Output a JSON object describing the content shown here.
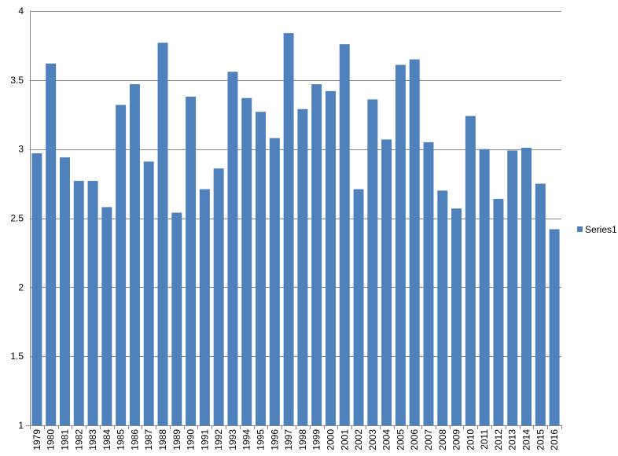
{
  "chart_data": {
    "type": "bar",
    "title": "",
    "xlabel": "",
    "ylabel": "",
    "ylim": [
      1,
      4
    ],
    "yticks": [
      1,
      1.5,
      2,
      2.5,
      3,
      3.5,
      4
    ],
    "ytick_labels": [
      "1",
      "1.5",
      "2",
      "2.5",
      "3",
      "3.5",
      "4"
    ],
    "grid": true,
    "legend_position": "right",
    "bar_color": "#4F81BD",
    "categories": [
      "1979",
      "1980",
      "1981",
      "1982",
      "1983",
      "1984",
      "1985",
      "1986",
      "1987",
      "1988",
      "1989",
      "1990",
      "1991",
      "1992",
      "1993",
      "1994",
      "1995",
      "1996",
      "1997",
      "1998",
      "1999",
      "2000",
      "2001",
      "2002",
      "2003",
      "2004",
      "2005",
      "2006",
      "2007",
      "2008",
      "2009",
      "2010",
      "2011",
      "2012",
      "2013",
      "2014",
      "2015",
      "2016"
    ],
    "series": [
      {
        "name": "Series1",
        "values": [
          2.97,
          3.62,
          2.94,
          2.77,
          2.77,
          2.58,
          3.32,
          3.47,
          2.91,
          3.77,
          2.54,
          3.38,
          2.71,
          2.86,
          3.56,
          3.37,
          3.27,
          3.08,
          3.84,
          3.29,
          3.47,
          3.42,
          3.76,
          2.71,
          3.36,
          3.07,
          3.61,
          3.65,
          3.05,
          2.7,
          2.57,
          3.24,
          3.0,
          2.64,
          2.99,
          3.01,
          2.75,
          2.42
        ]
      }
    ]
  }
}
